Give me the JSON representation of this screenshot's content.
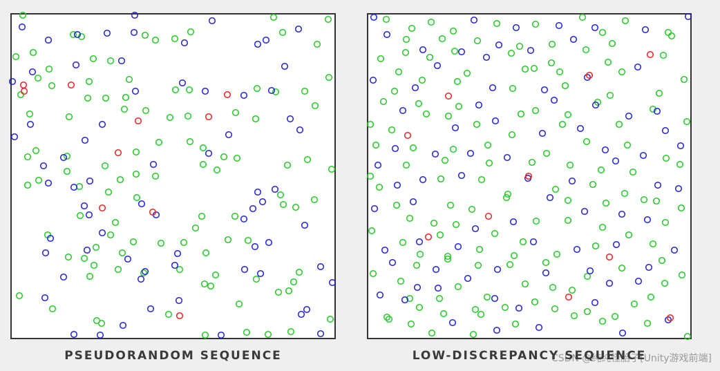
{
  "chart_data": [
    {
      "type": "scatter",
      "title": "PSEUDORANDOM SEQUENCE",
      "xlim": [
        16,
        485
      ],
      "ylim": [
        490,
        20
      ],
      "series": [
        {
          "color": "#22cc22",
          "x": [
            33,
            23,
            48,
            71,
            106,
            118,
            210,
            225,
            276,
            253,
            396,
            409,
            459,
            475,
            135,
            160,
            187,
            129,
            55,
            30,
            75,
            182,
            127,
            153,
            254,
            274,
            372,
            399,
            441,
            476,
            43,
            100,
            180,
            211,
            246,
            272,
            341,
            370,
            456,
            52,
            40,
            97,
            152,
            197,
            230,
            275,
            294,
            324,
            294,
            314,
            343,
            416,
            445,
            480,
            40,
            56,
            97,
            115,
            157,
            174,
            197,
            225,
            198,
            406,
            410,
            455,
            428,
            340,
            292,
            116,
            167,
            283,
            330,
            359,
            69,
            160,
            193,
            139,
            99,
            122,
            177,
            233,
            266,
            298,
            136,
            171,
            208,
            260,
            312,
            433,
            371,
            425,
            296,
            305,
            130,
            403,
            418,
            28,
            76,
            346,
            140,
            147,
            244,
            297,
            357,
            388,
            421,
            478
          ],
          "values": [
            22,
            82,
            76,
            100,
            50,
            53,
            51,
            58,
            46,
            56,
            25,
            47,
            64,
            28,
            85,
            88,
            115,
            118,
            113,
            137,
            124,
            141,
            142,
            142,
            130,
            130,
            128,
            133,
            132,
            112,
            165,
            169,
            158,
            160,
            170,
            168,
            163,
            172,
            153,
            218,
            227,
            226,
            240,
            220,
            206,
            205,
            214,
            227,
            238,
            246,
            229,
            239,
            231,
            245,
            268,
            261,
            248,
            270,
            278,
            260,
            252,
            255,
            286,
            282,
            296,
            289,
            300,
            313,
            313,
            312,
            322,
            330,
            347,
            348,
            340,
            340,
            350,
            358,
            372,
            374,
            366,
            352,
            351,
            366,
            384,
            390,
            395,
            390,
            398,
            394,
            404,
            408,
            411,
            414,
            400,
            423,
            421,
            428,
            447,
            440,
            464,
            468,
            455,
            485,
            481,
            484,
            480,
            462
          ]
        },
        {
          "color": "#2222dd",
          "x": [
            32,
            47,
            70,
            112,
            155,
            194,
            267,
            307,
            373,
            385,
            432,
            412,
            110,
            176,
            196,
            264,
            297,
            353,
            393,
            420,
            434,
            21,
            44,
            148,
            123,
            92,
            63,
            70,
            107,
            130,
            222,
            302,
            331,
            373,
            380,
            398,
            366,
            122,
            205,
            226,
            129,
            353,
            441,
            148,
            73,
            126,
            66,
            369,
            389,
            257,
            185,
            253,
            210,
            354,
            377,
            464,
            92,
            204,
            481,
            65,
            259,
            218,
            444,
            436,
            178,
            107,
            145,
            320,
            464,
            18,
            195
          ],
          "values": [
            39,
            104,
            58,
            50,
            48,
            47,
            62,
            30,
            64,
            58,
            42,
            96,
            94,
            88,
            132,
            120,
            132,
            138,
            131,
            172,
            188,
            198,
            180,
            180,
            203,
            228,
            240,
            265,
            271,
            262,
            238,
            222,
            195,
            278,
            292,
            274,
            302,
            298,
            295,
            311,
            311,
            317,
            326,
            337,
            345,
            362,
            366,
            357,
            351,
            367,
            375,
            384,
            393,
            390,
            396,
            386,
            401,
            404,
            409,
            431,
            435,
            447,
            448,
            455,
            471,
            484,
            485,
            485,
            483,
            118,
            22
          ]
        },
        {
          "color": "#ee2222",
          "x": [
            34,
            35,
            103,
            329,
            302,
            200,
            171,
            148,
            221,
            260
          ],
          "values": [
            123,
            132,
            123,
            137,
            169,
            175,
            221,
            301,
            307,
            457
          ]
        }
      ]
    },
    {
      "type": "scatter",
      "title": "LOW-DISCREPANCY SEQUENCE",
      "xlim": [
        532,
        1000
      ],
      "ylim": [
        490,
        20
      ],
      "series": [
        {
          "color": "#22cc22",
          "x": [
            559,
            596,
            624,
            656,
            719,
            775,
            843,
            872,
            905,
            967,
            972,
            588,
            640,
            691,
            752,
            799,
            848,
            886,
            551,
            587,
            622,
            658,
            740,
            773,
            798,
            880,
            960,
            577,
            676,
            760,
            810,
            900,
            990,
            571,
            611,
            662,
            742,
            818,
            883,
            954,
            555,
            606,
            664,
            754,
            775,
            822,
            865,
            945,
            617,
            994,
            536,
            567,
            649,
            690,
            741,
            814,
            896,
            544,
            598,
            656,
            706,
            791,
            849,
            908,
            964,
            536,
            588,
            644,
            708,
            770,
            825,
            870,
            916,
            984,
            549,
            638,
            697,
            735,
            804,
            858,
            904,
            950,
            574,
            652,
            683,
            733,
            822,
            877,
            932,
            986,
            593,
            628,
            660,
            776,
            822,
            872,
            963,
            538,
            583,
            637,
            716,
            757,
            910,
            945,
            608,
            648,
            694,
            744,
            806,
            862,
            958,
            540,
            603,
            648,
            692,
            738,
            790,
            900,
            987,
            580,
            663,
            760,
            800,
            850,
            962,
            593,
            705,
            774,
            828,
            942,
            607,
            636,
            688,
            731,
            803,
            850,
            918,
            560,
            595,
            642,
            696,
            746,
            831,
            872,
            890,
            937,
            625,
            685,
            995,
            563
          ],
          "values": [
            28,
            41,
            32,
            45,
            34,
            35,
            25,
            47,
            30,
            47,
            52,
            57,
            56,
            59,
            67,
            64,
            72,
            63,
            85,
            76,
            83,
            74,
            77,
            99,
            91,
            90,
            80,
            104,
            106,
            100,
            104,
            104,
            115,
            132,
            116,
            118,
            128,
            124,
            138,
            135,
            147,
            150,
            154,
            165,
            160,
            166,
            148,
            158,
            165,
            176,
            180,
            188,
            168,
            180,
            195,
            180,
            180,
            210,
            214,
            216,
            210,
            222,
            205,
            210,
            229,
            255,
            239,
            232,
            236,
            235,
            239,
            246,
            249,
            238,
            271,
            259,
            260,
            281,
            274,
            267,
            280,
            291,
            297,
            297,
            303,
            286,
            290,
            294,
            289,
            301,
            316,
            323,
            325,
            320,
            319,
            329,
            322,
            334,
            351,
            340,
            338,
            350,
            340,
            353,
            368,
            371,
            361,
            370,
            368,
            356,
            377,
            396,
            384,
            375,
            384,
            383,
            380,
            388,
            398,
            407,
            415,
            411,
            416,
            400,
            410,
            432,
            430,
            437,
            420,
            430,
            445,
            432,
            448,
            445,
            447,
            451,
            440,
            459,
            469,
            454,
            455,
            469,
            457,
            465,
            458,
            468,
            482,
            484,
            487,
            462
          ]
        },
        {
          "color": "#2222dd",
          "x": [
            560,
            612,
            686,
            747,
            809,
            861,
            934,
            996,
            668,
            722,
            768,
            830,
            704,
            923,
            633,
            540,
            601,
            713,
            788,
            850,
            583,
            693,
            802,
            862,
            910,
            951,
            659,
            717,
            785,
            840,
            963,
            572,
            630,
            681,
            734,
            764,
            796,
            876,
            891,
            931,
            985,
            547,
            575,
            612,
            668,
            828,
            952,
            982,
            542,
            598,
            688,
            743,
            846,
            900,
            937,
            557,
            607,
            663,
            772,
            835,
            892,
            976,
            568,
            631,
            720,
            854,
            939,
            604,
            677,
            790,
            882,
            924,
            586,
            550,
            716,
            751,
            861,
            967,
            655,
            719,
            780,
            541,
            901,
            634
          ],
          "values": [
            50,
            72,
            29,
            40,
            37,
            40,
            43,
            24,
            75,
            65,
            73,
            57,
            83,
            97,
            95,
            116,
            127,
            127,
            130,
            112,
            160,
            152,
            145,
            152,
            168,
            161,
            185,
            175,
            193,
            186,
            189,
            215,
            223,
            222,
            228,
            258,
            286,
            217,
            233,
            225,
            211,
            239,
            268,
            260,
            254,
            262,
            268,
            273,
            302,
            292,
            331,
            321,
            306,
            310,
            318,
            362,
            350,
            357,
            350,
            361,
            354,
            362,
            380,
            390,
            390,
            392,
            387,
            416,
            403,
            395,
            410,
            407,
            434,
            427,
            432,
            446,
            438,
            463,
            467,
            478,
            474,
            25,
            482,
            417
          ]
        },
        {
          "color": "#ee2222",
          "x": [
            649,
            853,
            941,
            590,
            765,
            707,
            620,
            882,
            823,
            970
          ],
          "values": [
            139,
            109,
            79,
            196,
            255,
            313,
            343,
            372,
            430,
            460
          ]
        }
      ]
    }
  ],
  "watermark": "CSDN @纯纯怪胎子[Unity游戏前端]"
}
